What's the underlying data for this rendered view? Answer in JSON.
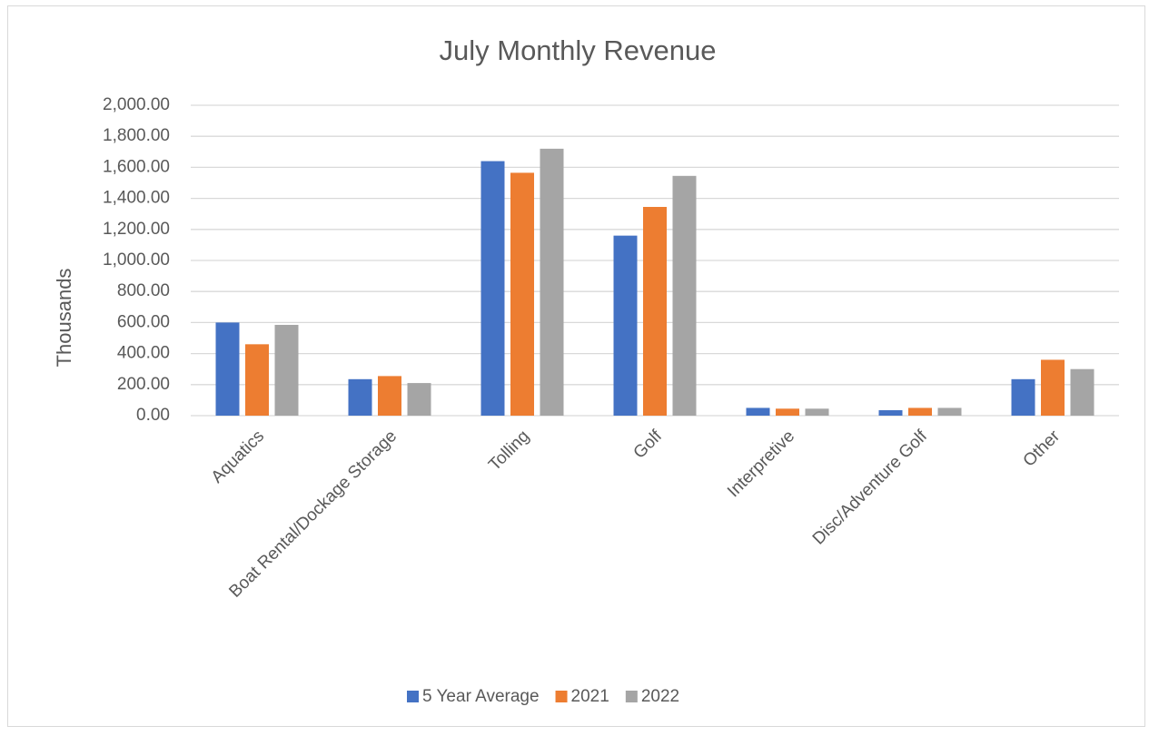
{
  "chart_data": {
    "type": "bar",
    "title": "July Monthly Revenue",
    "y_label": "Thousands",
    "categories": [
      "Aquatics",
      "Boat Rental/Dockage Storage",
      "Tolling",
      "Golf",
      "Interpretive",
      "Disc/Adventure Golf",
      "Other"
    ],
    "series": [
      {
        "name": "5 Year Average",
        "color": "#4472c4",
        "values": [
          600,
          235,
          1640,
          1160,
          50,
          35,
          235
        ]
      },
      {
        "name": "2021",
        "color": "#ed7d31",
        "values": [
          460,
          255,
          1565,
          1345,
          45,
          50,
          360
        ]
      },
      {
        "name": "2022",
        "color": "#a5a5a5",
        "values": [
          585,
          210,
          1720,
          1545,
          45,
          50,
          300
        ]
      }
    ],
    "ylim": [
      0,
      2000
    ],
    "yticks": [
      {
        "value": 0,
        "label": "0.00"
      },
      {
        "value": 200,
        "label": "200.00"
      },
      {
        "value": 400,
        "label": "400.00"
      },
      {
        "value": 600,
        "label": "600.00"
      },
      {
        "value": 800,
        "label": "800.00"
      },
      {
        "value": 1000,
        "label": "1,000.00"
      },
      {
        "value": 1200,
        "label": "1,200.00"
      },
      {
        "value": 1400,
        "label": "1,400.00"
      },
      {
        "value": 1600,
        "label": "1,600.00"
      },
      {
        "value": 1800,
        "label": "1,800.00"
      },
      {
        "value": 2000,
        "label": "2,000.00"
      }
    ],
    "grid": true,
    "legend": "bottom"
  }
}
